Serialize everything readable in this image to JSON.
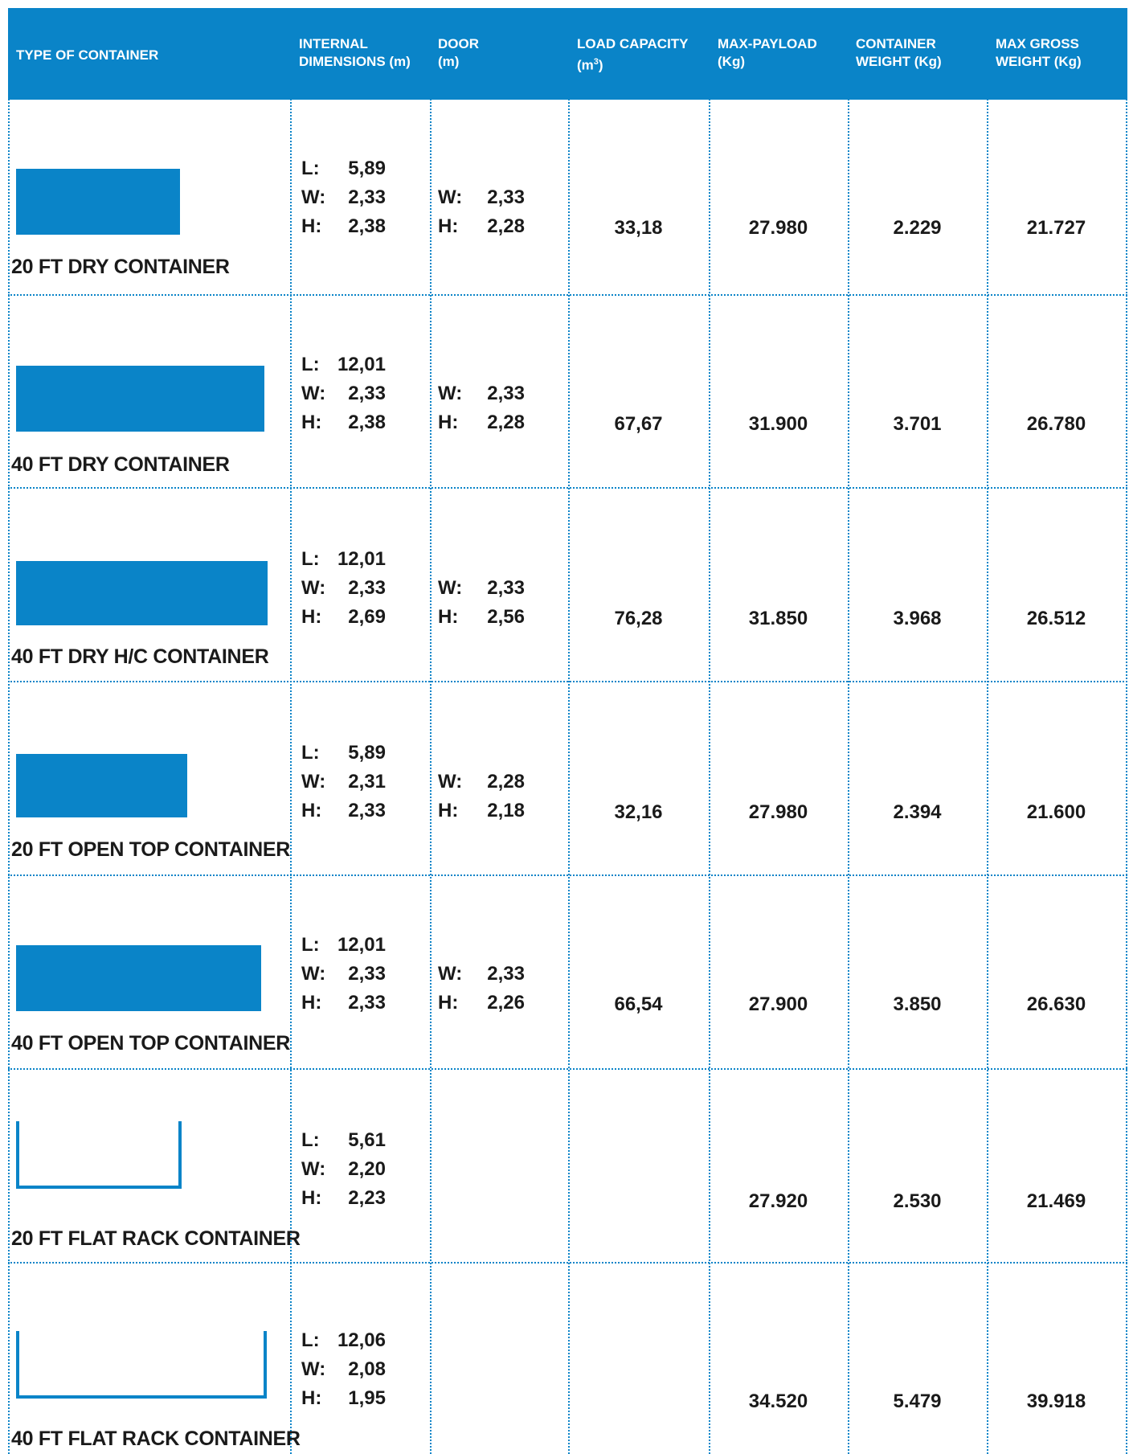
{
  "header": {
    "type": "TYPE OF CONTAINER",
    "internal_line1": "INTERNAL",
    "internal_line2": "DIMENSIONS (m)",
    "door_line1": "DOOR",
    "door_line2": "(m)",
    "load_line1": "LOAD CAPACITY",
    "load_line2": "(m",
    "load_sup": "3",
    "load_close": ")",
    "payload_line1": "MAX-PAYLOAD",
    "payload_line2": "(Kg)",
    "weight_line1": "CONTAINER",
    "weight_line2": "WEIGHT (Kg)",
    "gross_line1": "MAX GROSS",
    "gross_line2": "WEIGHT (Kg)"
  },
  "labels": {
    "L": "L:",
    "W": "W:",
    "H": "H:"
  },
  "rows": [
    {
      "name": "20 FT DRY CONTAINER",
      "icon": "container-box-icon",
      "L": "5,89",
      "W": "2,33",
      "H": "2,38",
      "door_W": "2,33",
      "door_H": "2,28",
      "load": "33,18",
      "payload": "27.980",
      "weight": "2.229",
      "gross": "21.727"
    },
    {
      "name": "40 FT DRY CONTAINER",
      "icon": "container-box-icon",
      "L": "12,01",
      "W": "2,33",
      "H": "2,38",
      "door_W": "2,33",
      "door_H": "2,28",
      "load": "67,67",
      "payload": "31.900",
      "weight": "3.701",
      "gross": "26.780"
    },
    {
      "name": "40 FT DRY H/C CONTAINER",
      "icon": "container-box-icon",
      "L": "12,01",
      "W": "2,33",
      "H": "2,69",
      "door_W": "2,33",
      "door_H": "2,56",
      "load": "76,28",
      "payload": "31.850",
      "weight": "3.968",
      "gross": "26.512"
    },
    {
      "name": "20 FT OPEN TOP CONTAINER",
      "icon": "container-box-icon",
      "L": "5,89",
      "W": "2,31",
      "H": "2,33",
      "door_W": "2,28",
      "door_H": "2,18",
      "load": "32,16",
      "payload": "27.980",
      "weight": "2.394",
      "gross": "21.600"
    },
    {
      "name": "40 FT OPEN TOP CONTAINER",
      "icon": "container-box-icon",
      "L": "12,01",
      "W": "2,33",
      "H": "2,33",
      "door_W": "2,33",
      "door_H": "2,26",
      "load": "66,54",
      "payload": "27.900",
      "weight": "3.850",
      "gross": "26.630"
    },
    {
      "name": "20 FT FLAT RACK CONTAINER",
      "icon": "flat-rack-icon",
      "L": "5,61",
      "W": "2,20",
      "H": "2,23",
      "payload": "27.920",
      "weight": "2.530",
      "gross": "21.469"
    },
    {
      "name": "40 FT FLAT RACK CONTAINER",
      "icon": "flat-rack-icon",
      "L": "12,06",
      "W": "2,08",
      "H": "1,95",
      "payload": "34.520",
      "weight": "5.479",
      "gross": "39.918"
    }
  ]
}
